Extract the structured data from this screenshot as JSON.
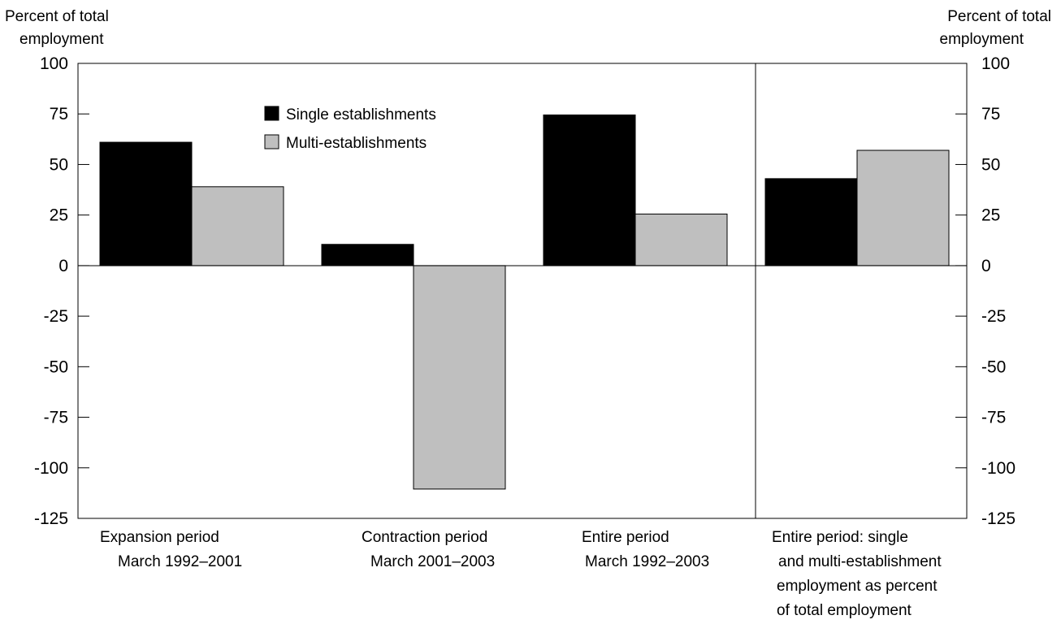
{
  "chart_data": {
    "type": "bar",
    "categories": [
      [
        "Expansion period",
        "March 1992–2001"
      ],
      [
        "Contraction period",
        "March 2001–2003"
      ],
      [
        "Entire period",
        "March 1992–2003"
      ],
      [
        "Entire period:  single",
        "and multi-establishment",
        "employment as percent",
        "of total employment"
      ]
    ],
    "series": [
      {
        "name": "Single establishments",
        "values": [
          61,
          10.5,
          74.5,
          43
        ]
      },
      {
        "name": "Multi-establishments",
        "values": [
          39,
          -110.5,
          25.5,
          57
        ]
      }
    ],
    "ylabel_left": [
      "Percent of total",
      "employment"
    ],
    "ylabel_right": [
      "Percent of total",
      "employment"
    ],
    "ylim": [
      -125,
      100
    ],
    "yticks": [
      100,
      75,
      50,
      25,
      0,
      -25,
      -50,
      -75,
      -100,
      -125
    ],
    "legend_position": "top-center",
    "colors": {
      "single": "#000000",
      "multi": "#bfbfbf"
    }
  }
}
